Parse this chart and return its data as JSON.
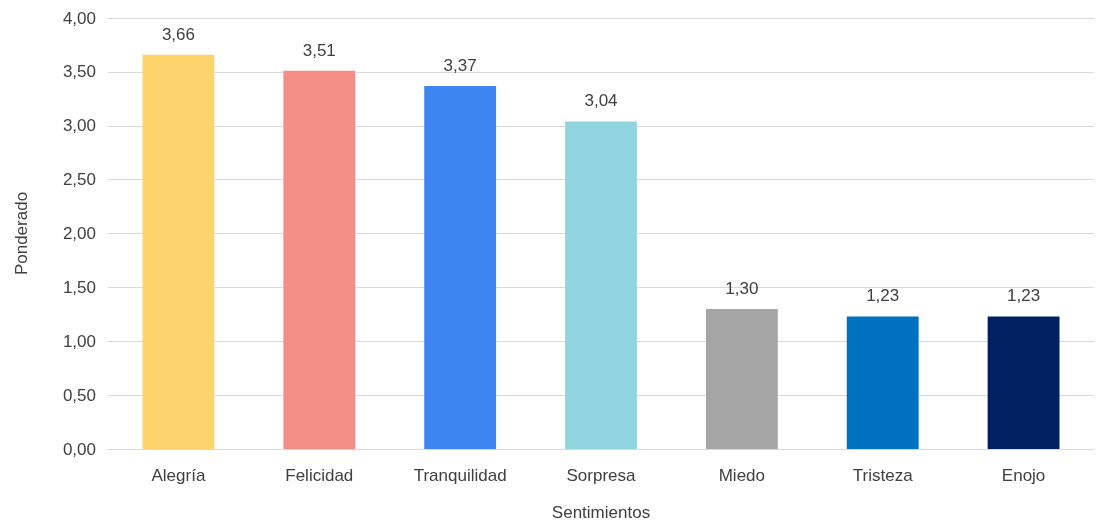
{
  "chart_data": {
    "type": "bar",
    "xlabel": "Sentimientos",
    "ylabel": "Ponderado",
    "categories": [
      "Alegría",
      "Felicidad",
      "Tranquilidad",
      "Sorpresa",
      "Miedo",
      "Tristeza",
      "Enojo"
    ],
    "values": [
      3.66,
      3.51,
      3.37,
      3.04,
      1.3,
      1.23,
      1.23
    ],
    "colors": [
      "#fdd46b",
      "#f28e86",
      "#3d86f2",
      "#91d6de",
      "#a5a5a5",
      "#0070c0",
      "#002060"
    ],
    "value_labels": [
      "3,66",
      "3,51",
      "3,37",
      "3,04",
      "1,30",
      "1,23",
      "1,23"
    ],
    "ylim": [
      0,
      4
    ],
    "yticks": [
      {
        "value": 0,
        "label": "0,00"
      },
      {
        "value": 0.5,
        "label": "0,50"
      },
      {
        "value": 1,
        "label": "1,00"
      },
      {
        "value": 1.5,
        "label": "1,50"
      },
      {
        "value": 2,
        "label": "2,00"
      },
      {
        "value": 2.5,
        "label": "2,50"
      },
      {
        "value": 3,
        "label": "3,00"
      },
      {
        "value": 3.5,
        "label": "3,50"
      },
      {
        "value": 4,
        "label": "4,00"
      }
    ],
    "grid": "y"
  }
}
